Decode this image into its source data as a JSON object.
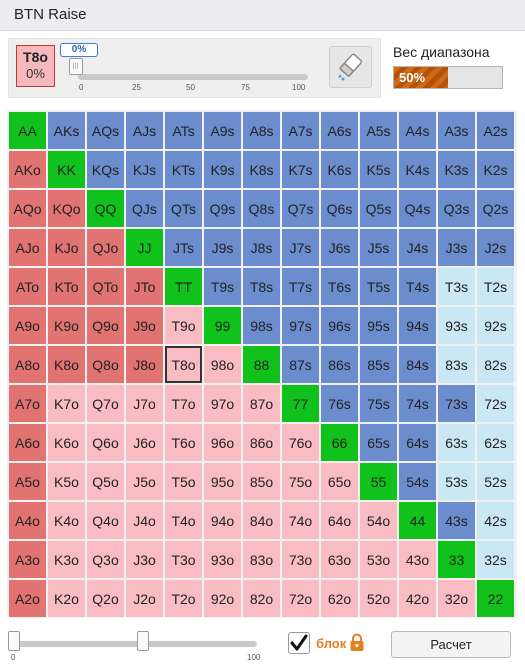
{
  "window": {
    "title": "BTN Raise"
  },
  "selected_combo": {
    "name": "T8o",
    "percent": "0%"
  },
  "slider": {
    "value_label": "0%",
    "value": 0,
    "ticks": [
      "0",
      "25",
      "50",
      "75",
      "100"
    ]
  },
  "range_weight": {
    "label": "Вес диапазона",
    "value": "50%",
    "fraction": 0.5
  },
  "grid": {
    "rows": [
      [
        "AA",
        "AKs",
        "AQs",
        "AJs",
        "ATs",
        "A9s",
        "A8s",
        "A7s",
        "A6s",
        "A5s",
        "A4s",
        "A3s",
        "A2s"
      ],
      [
        "AKo",
        "KK",
        "KQs",
        "KJs",
        "KTs",
        "K9s",
        "K8s",
        "K7s",
        "K6s",
        "K5s",
        "K4s",
        "K3s",
        "K2s"
      ],
      [
        "AQo",
        "KQo",
        "QQ",
        "QJs",
        "QTs",
        "Q9s",
        "Q8s",
        "Q7s",
        "Q6s",
        "Q5s",
        "Q4s",
        "Q3s",
        "Q2s"
      ],
      [
        "AJo",
        "KJo",
        "QJo",
        "JJ",
        "JTs",
        "J9s",
        "J8s",
        "J7s",
        "J6s",
        "J5s",
        "J4s",
        "J3s",
        "J2s"
      ],
      [
        "ATo",
        "KTo",
        "QTo",
        "JTo",
        "TT",
        "T9s",
        "T8s",
        "T7s",
        "T6s",
        "T5s",
        "T4s",
        "T3s",
        "T2s"
      ],
      [
        "A9o",
        "K9o",
        "Q9o",
        "J9o",
        "T9o",
        "99",
        "98s",
        "97s",
        "96s",
        "95s",
        "94s",
        "93s",
        "92s"
      ],
      [
        "A8o",
        "K8o",
        "Q8o",
        "J8o",
        "T8o",
        "98o",
        "88",
        "87s",
        "86s",
        "85s",
        "84s",
        "83s",
        "82s"
      ],
      [
        "A7o",
        "K7o",
        "Q7o",
        "J7o",
        "T7o",
        "97o",
        "87o",
        "77",
        "76s",
        "75s",
        "74s",
        "73s",
        "72s"
      ],
      [
        "A6o",
        "K6o",
        "Q6o",
        "J6o",
        "T6o",
        "96o",
        "86o",
        "76o",
        "66",
        "65s",
        "64s",
        "63s",
        "62s"
      ],
      [
        "A5o",
        "K5o",
        "Q5o",
        "J5o",
        "T5o",
        "95o",
        "85o",
        "75o",
        "65o",
        "55",
        "54s",
        "53s",
        "52s"
      ],
      [
        "A4o",
        "K4o",
        "Q4o",
        "J4o",
        "T4o",
        "94o",
        "84o",
        "74o",
        "64o",
        "54o",
        "44",
        "43s",
        "42s"
      ],
      [
        "A3o",
        "K3o",
        "Q3o",
        "J3o",
        "T3o",
        "93o",
        "83o",
        "73o",
        "63o",
        "53o",
        "43o",
        "33",
        "32s"
      ],
      [
        "A2o",
        "K2o",
        "Q2o",
        "J2o",
        "T2o",
        "92o",
        "82o",
        "72o",
        "62o",
        "52o",
        "42o",
        "32o",
        "22"
      ]
    ],
    "strong_suited": [
      "AKs",
      "AQs",
      "AJs",
      "ATs",
      "A9s",
      "A8s",
      "A7s",
      "A6s",
      "A5s",
      "A4s",
      "A3s",
      "A2s",
      "KQs",
      "KJs",
      "KTs",
      "K9s",
      "K8s",
      "K7s",
      "K6s",
      "K5s",
      "K4s",
      "K3s",
      "K2s",
      "QJs",
      "QTs",
      "Q9s",
      "Q8s",
      "Q7s",
      "Q6s",
      "Q5s",
      "Q4s",
      "Q3s",
      "Q2s",
      "JTs",
      "J9s",
      "J8s",
      "J7s",
      "J6s",
      "J5s",
      "J4s",
      "J3s",
      "J2s",
      "T9s",
      "T8s",
      "T7s",
      "T6s",
      "T5s",
      "T4s",
      "98s",
      "97s",
      "96s",
      "95s",
      "94s",
      "87s",
      "86s",
      "85s",
      "84s",
      "76s",
      "75s",
      "74s",
      "73s",
      "65s",
      "64s",
      "54s",
      "43s"
    ],
    "strong_offsuit": [
      "AKo",
      "AQo",
      "AJo",
      "ATo",
      "A9o",
      "A8o",
      "A7o",
      "A6o",
      "A5o",
      "A4o",
      "A3o",
      "A2o",
      "KQo",
      "KJo",
      "KTo",
      "K9o",
      "K8o",
      "QJo",
      "QTo",
      "Q9o",
      "Q8o",
      "JTo",
      "J9o",
      "J8o"
    ],
    "selected_cell": "T8o",
    "colors": {
      "pair": "#11c11c",
      "suited": "#6b8dcd",
      "suited_light": "#cae8f3",
      "offsuit": "#e17373",
      "offsuit_light": "#f9bcc2"
    }
  },
  "bottom_slider": {
    "min_label": "0",
    "max_label": "100",
    "low": 0,
    "high": 53
  },
  "block": {
    "label": "блок",
    "checked": true,
    "icon": "lock-icon"
  },
  "calc_button": {
    "label": "Расчет"
  }
}
